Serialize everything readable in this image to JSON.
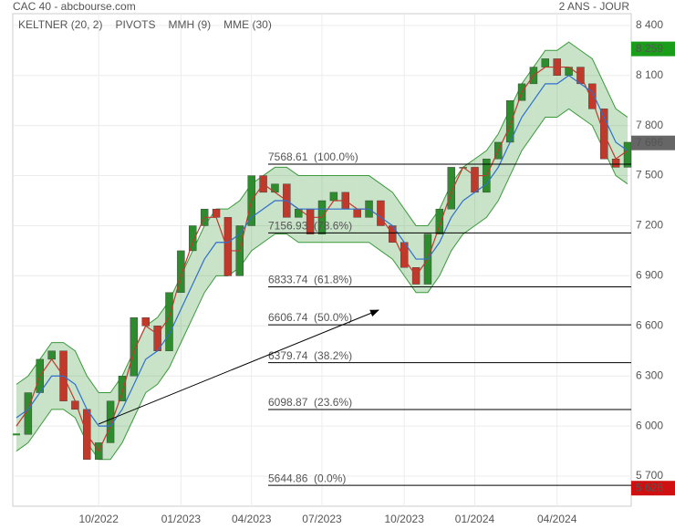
{
  "chart_data": {
    "type": "candlestick",
    "title": "CAC 40 - abcbourse.com",
    "subtitle": "2 ANS - JOUR",
    "categories": [
      null,
      null,
      null,
      null,
      null,
      null,
      null,
      "10/2022",
      null,
      null,
      null,
      null,
      null,
      null,
      "01/2023",
      null,
      null,
      null,
      null,
      null,
      "04/2023",
      null,
      null,
      null,
      null,
      null,
      "07/2023",
      null,
      null,
      null,
      null,
      null,
      null,
      "10/2023",
      null,
      null,
      null,
      null,
      null,
      "01/2024",
      null,
      null,
      null,
      null,
      null,
      null,
      "04/2024",
      null,
      null,
      null,
      null,
      null,
      null
    ],
    "close": [
      5950,
      6200,
      6400,
      6450,
      6150,
      6100,
      5800,
      5900,
      6150,
      6300,
      6650,
      6600,
      6450,
      6800,
      7050,
      7200,
      7300,
      7250,
      6900,
      7200,
      7500,
      7400,
      7450,
      7250,
      7300,
      7150,
      7350,
      7400,
      7300,
      7250,
      7350,
      7200,
      7100,
      6950,
      6850,
      7150,
      7300,
      7550,
      7550,
      7400,
      7600,
      7700,
      7950,
      8050,
      8150,
      8200,
      8100,
      8150,
      8050,
      7900,
      7600,
      7550,
      7700
    ],
    "up_color": "#2e8b2e",
    "down_color": "#c0392b",
    "keltner": {
      "name": "KELTNER (20, 2)",
      "color": "#3a9a3a",
      "upper": [
        6250,
        6300,
        6400,
        6500,
        6500,
        6450,
        6300,
        6200,
        6200,
        6300,
        6450,
        6600,
        6650,
        6750,
        6900,
        7050,
        7200,
        7300,
        7300,
        7350,
        7450,
        7500,
        7550,
        7550,
        7500,
        7500,
        7500,
        7500,
        7500,
        7500,
        7500,
        7450,
        7400,
        7300,
        7200,
        7200,
        7300,
        7450,
        7550,
        7600,
        7650,
        7750,
        7900,
        8050,
        8150,
        8250,
        8250,
        8300,
        8250,
        8200,
        8050,
        7900,
        7850
      ],
      "lower": [
        5850,
        5900,
        6000,
        6100,
        6100,
        6050,
        5900,
        5800,
        5800,
        5900,
        6050,
        6200,
        6250,
        6350,
        6500,
        6650,
        6800,
        6900,
        6900,
        6950,
        7050,
        7100,
        7150,
        7150,
        7100,
        7100,
        7100,
        7100,
        7100,
        7100,
        7100,
        7050,
        7000,
        6900,
        6800,
        6800,
        6900,
        7050,
        7150,
        7200,
        7250,
        7350,
        7500,
        7650,
        7750,
        7850,
        7850,
        7900,
        7850,
        7800,
        7650,
        7500,
        7450
      ]
    },
    "pivots": {
      "name": "PIVOTS",
      "color": "#555555",
      "levels": [
        {
          "value": 7568.61,
          "label": "7568.61  (100.0%)"
        },
        {
          "value": 7156.93,
          "label": "7156.93  (78.6%)"
        },
        {
          "value": 6833.74,
          "label": "6833.74  (61.8%)"
        },
        {
          "value": 6606.74,
          "label": "6606.74  (50.0%)"
        },
        {
          "value": 6379.74,
          "label": "6379.74  (38.2%)"
        },
        {
          "value": 6098.87,
          "label": "6098.87  (23.6%)"
        },
        {
          "value": 5644.86,
          "label": "5644.86  (0.0%)"
        }
      ]
    },
    "series": [
      {
        "name": "MMH (9)",
        "color": "#c0392b",
        "values": [
          6000,
          6100,
          6300,
          6400,
          6300,
          6150,
          5950,
          5850,
          6000,
          6200,
          6450,
          6600,
          6550,
          6650,
          6900,
          7100,
          7250,
          7250,
          7050,
          7050,
          7350,
          7450,
          7400,
          7350,
          7300,
          7250,
          7250,
          7350,
          7350,
          7300,
          7300,
          7250,
          7150,
          7000,
          6900,
          7000,
          7200,
          7400,
          7550,
          7500,
          7500,
          7650,
          7800,
          8000,
          8100,
          8150,
          8150,
          8150,
          8100,
          7950,
          7750,
          7600,
          7650
        ]
      },
      {
        "name": "MME (30)",
        "color": "#2f6fce",
        "values": [
          6050,
          6100,
          6200,
          6300,
          6300,
          6250,
          6100,
          6000,
          6000,
          6100,
          6250,
          6400,
          6450,
          6550,
          6700,
          6850,
          7000,
          7100,
          7100,
          7150,
          7250,
          7300,
          7350,
          7350,
          7300,
          7300,
          7300,
          7300,
          7300,
          7300,
          7300,
          7250,
          7200,
          7100,
          7000,
          7000,
          7100,
          7250,
          7350,
          7400,
          7450,
          7550,
          7700,
          7850,
          7950,
          8050,
          8050,
          8100,
          8050,
          8000,
          7850,
          7700,
          7650
        ]
      }
    ],
    "price_tags": [
      {
        "value": 8259,
        "label": "8 259",
        "color": "#1a9e1a"
      },
      {
        "value": 7696,
        "label": "7 696",
        "color": "#666666"
      },
      {
        "value": 5628,
        "label": "5 628",
        "color": "#d01010"
      }
    ],
    "ylim": [
      5520,
      8470
    ],
    "yticks": [
      {
        "value": 5700,
        "label": "5 700"
      },
      {
        "value": 6000,
        "label": "6 000"
      },
      {
        "value": 6300,
        "label": "6 300"
      },
      {
        "value": 6600,
        "label": "6 600"
      },
      {
        "value": 6900,
        "label": "6 900"
      },
      {
        "value": 7200,
        "label": "7 200"
      },
      {
        "value": 7500,
        "label": "7 500"
      },
      {
        "value": 7800,
        "label": "7 800"
      },
      {
        "value": 8100,
        "label": "8 100"
      },
      {
        "value": 8400,
        "label": "8 400"
      }
    ],
    "grid": true
  }
}
